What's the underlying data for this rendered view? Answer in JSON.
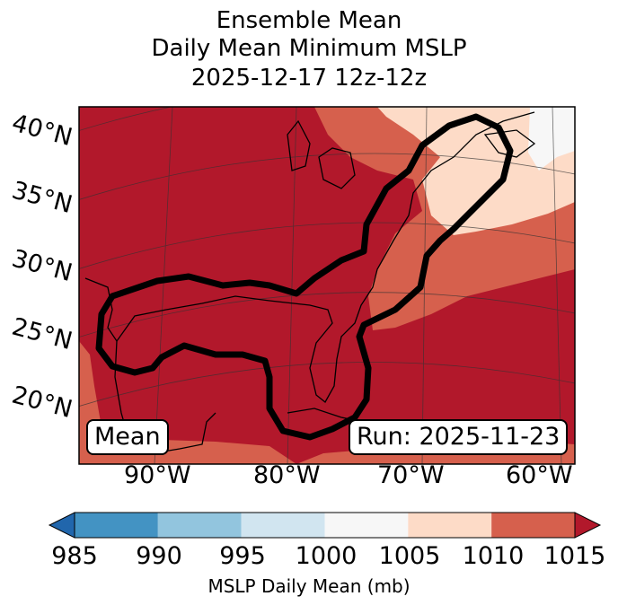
{
  "title": {
    "line1": "Ensemble Mean",
    "line2": "Daily Mean Minimum MSLP",
    "line3": "2025-12-17 12z-12z"
  },
  "map": {
    "lat_labels": [
      "40°N",
      "35°N",
      "30°N",
      "25°N",
      "20°N"
    ],
    "lon_labels": [
      "90°W",
      "80°W",
      "70°W",
      "60°W"
    ],
    "mean_box": "Mean",
    "run_box": "Run: 2025-11-23",
    "field_colors": {
      "1010-1015": "#b2182b",
      "1005-1010": "#d6604d",
      "1000-1005": "#fddbc7",
      "995-1000": "#f7f7f7"
    }
  },
  "colorbar": {
    "label": "MSLP Daily Mean (mb)",
    "ticks": [
      "985",
      "990",
      "995",
      "1000",
      "1005",
      "1010",
      "1015"
    ],
    "colors": [
      "#2166ac",
      "#4393c3",
      "#92c5de",
      "#d1e5f0",
      "#f7f7f7",
      "#fddbc7",
      "#d6604d",
      "#b2182b"
    ]
  }
}
